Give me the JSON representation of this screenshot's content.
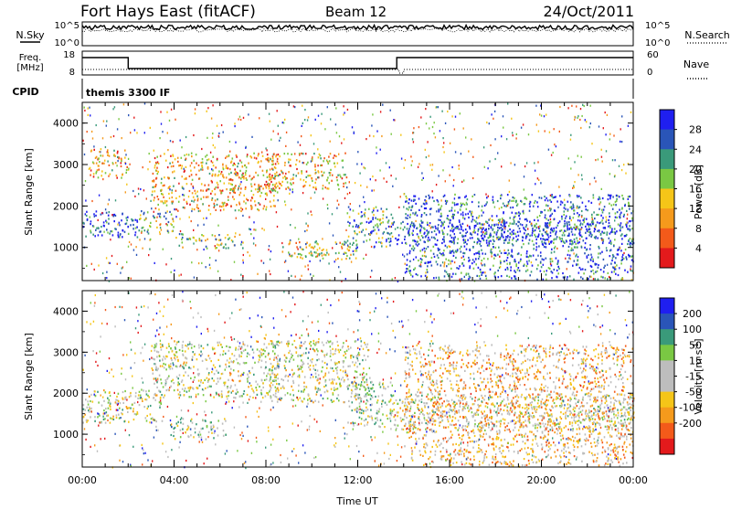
{
  "header": {
    "station": "Fort Hays East (fitACF)",
    "beam": "Beam 12",
    "date": "24/Oct/2011"
  },
  "nsky_panel": {
    "left_label": "N.Sky",
    "left_ticks": [
      "10^5",
      "10^0"
    ],
    "right_label": "N.Search",
    "right_ticks": [
      "10^5",
      "10^0"
    ]
  },
  "freq_panel": {
    "left_label_1": "Freq.",
    "left_label_2": "[MHz]",
    "left_ticks": [
      "18",
      "8"
    ],
    "right_label": "Nave",
    "right_ticks": [
      "60",
      "0"
    ]
  },
  "cpid_panel": {
    "label": "CPID",
    "program": "themis 3300 IF"
  },
  "colors": {
    "power": [
      "#1f1ff0",
      "#2a55b8",
      "#3a9a7a",
      "#7ac843",
      "#f5c518",
      "#f59a1c",
      "#f35a1a",
      "#e31a1c"
    ],
    "velocity": [
      "#1f1ff0",
      "#2a55b8",
      "#3a9a7a",
      "#7ac843",
      "#bdbdbd",
      "#bdbdbd",
      "#f5c518",
      "#f59a1c",
      "#f35a1a",
      "#e31a1c"
    ]
  },
  "chart_data": [
    {
      "type": "heatmap",
      "name": "power",
      "xlabel": "",
      "ylabel": "Slant Range [km]",
      "xlim": [
        0,
        24
      ],
      "ylim": [
        200,
        4500
      ],
      "y_ticks": [
        "1000",
        "2000",
        "3000",
        "4000"
      ],
      "colorbar": {
        "label": "Power [dB]",
        "ticks": [
          "28",
          "24",
          "20",
          "16",
          "12",
          "8",
          "4"
        ],
        "range": [
          0,
          32
        ]
      },
      "bands": [
        {
          "t": [
            0.0,
            2.5
          ],
          "r": [
            1250,
            1900
          ],
          "v": 28
        },
        {
          "t": [
            2.5,
            4.0
          ],
          "r": [
            1350,
            1900
          ],
          "v": 20
        },
        {
          "t": [
            0.2,
            2.0
          ],
          "r": [
            2700,
            3400
          ],
          "v": 12
        },
        {
          "t": [
            3.0,
            8.5
          ],
          "r": [
            1900,
            3300
          ],
          "v": 12
        },
        {
          "t": [
            4.0,
            7.0
          ],
          "r": [
            1000,
            1350
          ],
          "v": 18
        },
        {
          "t": [
            8.0,
            11.5
          ],
          "r": [
            2400,
            3300
          ],
          "v": 12
        },
        {
          "t": [
            8.5,
            12.0
          ],
          "r": [
            750,
            1200
          ],
          "v": 16
        },
        {
          "t": [
            11.5,
            13.5
          ],
          "r": [
            1000,
            2000
          ],
          "v": 22
        },
        {
          "t": [
            13.5,
            24.0
          ],
          "r": [
            1100,
            1650
          ],
          "v": 28
        },
        {
          "t": [
            14.0,
            24.0
          ],
          "r": [
            250,
            2300
          ],
          "v": 26
        }
      ]
    },
    {
      "type": "heatmap",
      "name": "velocity",
      "xlabel": "Time UT",
      "ylabel": "Slant Range [km]",
      "xlim": [
        0,
        24
      ],
      "ylim": [
        200,
        4500
      ],
      "x_ticks": [
        "00:00",
        "04:00",
        "08:00",
        "12:00",
        "16:00",
        "20:00",
        "00:00"
      ],
      "y_ticks": [
        "1000",
        "2000",
        "3000",
        "4000"
      ],
      "colorbar": {
        "label": "Velocity [m s^-1]",
        "ticks": [
          "200",
          "100",
          "50",
          "15",
          "-15",
          "-50",
          "-100",
          "-200"
        ],
        "range": [
          -250,
          250
        ]
      },
      "bands": [
        {
          "t": [
            0.0,
            3.5
          ],
          "r": [
            1300,
            2100
          ],
          "v": 0
        },
        {
          "t": [
            3.0,
            8.5
          ],
          "r": [
            1900,
            3300
          ],
          "v": 0
        },
        {
          "t": [
            3.8,
            6.3
          ],
          "r": [
            900,
            1400
          ],
          "v": 40
        },
        {
          "t": [
            8.0,
            12.5
          ],
          "r": [
            1800,
            3300
          ],
          "v": 0
        },
        {
          "t": [
            11.5,
            13.5
          ],
          "r": [
            1200,
            2300
          ],
          "v": 35
        },
        {
          "t": [
            13.5,
            24.0
          ],
          "r": [
            1100,
            2000
          ],
          "v": 0
        },
        {
          "t": [
            14.0,
            24.0
          ],
          "r": [
            250,
            3200
          ],
          "v": -80
        }
      ]
    }
  ]
}
